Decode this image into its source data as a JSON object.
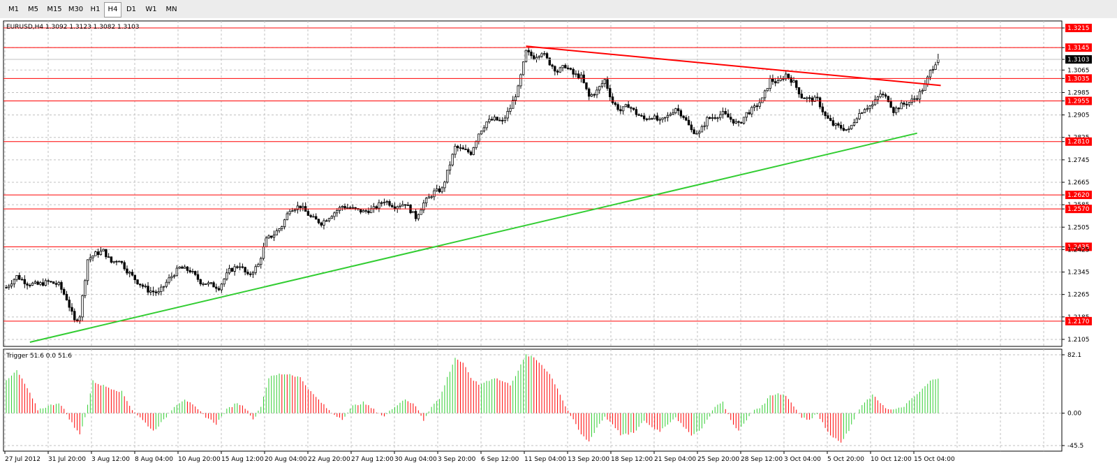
{
  "toolbar": {
    "timeframes": [
      "M1",
      "M5",
      "M15",
      "M30",
      "H1",
      "H4",
      "D1",
      "W1",
      "MN"
    ],
    "active": "H4"
  },
  "chart_data": [
    {
      "type": "candlestick",
      "symbol": "EURUSD",
      "timeframe": "H4",
      "header": "EURUSD,H4  1.3092 1.3123 1.3082 1.3103",
      "ohlc_last": {
        "open": 1.3092,
        "high": 1.3123,
        "low": 1.3082,
        "close": 1.3103
      },
      "current_price": "1.3103",
      "ylim": [
        1.208,
        1.324
      ],
      "y_ticks": [
        "1.3215",
        "1.3145",
        "1.3103",
        "1.3065",
        "1.3035",
        "1.2985",
        "1.2955",
        "1.2905",
        "1.2825",
        "1.2810",
        "1.2745",
        "1.2665",
        "1.2620",
        "1.2585",
        "1.2570",
        "1.2505",
        "1.2435",
        "1.2425",
        "1.2345",
        "1.2265",
        "1.2185",
        "1.2170",
        "1.2105"
      ],
      "levels": [
        1.3215,
        1.3145,
        1.3035,
        1.2955,
        1.281,
        1.262,
        1.257,
        1.2435,
        1.217
      ],
      "x_tick_labels": [
        "27 Jul 2012",
        "31 Jul 20:00",
        "3 Aug 12:00",
        "8 Aug 04:00",
        "10 Aug 20:00",
        "15 Aug 12:00",
        "20 Aug 04:00",
        "22 Aug 20:00",
        "27 Aug 12:00",
        "30 Aug 04:00",
        "3 Sep 20:00",
        "6 Sep 12:00",
        "11 Sep 04:00",
        "13 Sep 20:00",
        "18 Sep 12:00",
        "21 Sep 04:00",
        "25 Sep 20:00",
        "28 Sep 12:00",
        "3 Oct 04:00",
        "5 Oct 20:00",
        "10 Oct 12:00",
        "15 Oct 04:00"
      ],
      "close_path": [
        [
          0,
          1.229
        ],
        [
          4,
          1.233
        ],
        [
          8,
          1.2305
        ],
        [
          12,
          1.23
        ],
        [
          16,
          1.231
        ],
        [
          20,
          1.23
        ],
        [
          23,
          1.225
        ],
        [
          26,
          1.217
        ],
        [
          28,
          1.219
        ],
        [
          31,
          1.239
        ],
        [
          34,
          1.241
        ],
        [
          37,
          1.242
        ],
        [
          40,
          1.238
        ],
        [
          43,
          1.239
        ],
        [
          46,
          1.235
        ],
        [
          50,
          1.231
        ],
        [
          54,
          1.228
        ],
        [
          58,
          1.227
        ],
        [
          62,
          1.232
        ],
        [
          66,
          1.236
        ],
        [
          70,
          1.235
        ],
        [
          74,
          1.231
        ],
        [
          78,
          1.23
        ],
        [
          81,
          1.229
        ],
        [
          85,
          1.235
        ],
        [
          89,
          1.237
        ],
        [
          92,
          1.233
        ],
        [
          96,
          1.237
        ],
        [
          99,
          1.246
        ],
        [
          102,
          1.248
        ],
        [
          105,
          1.251
        ],
        [
          108,
          1.257
        ],
        [
          112,
          1.258
        ],
        [
          116,
          1.254
        ],
        [
          120,
          1.252
        ],
        [
          124,
          1.255
        ],
        [
          128,
          1.258
        ],
        [
          132,
          1.257
        ],
        [
          136,
          1.256
        ],
        [
          140,
          1.257
        ],
        [
          144,
          1.26
        ],
        [
          148,
          1.258
        ],
        [
          152,
          1.259
        ],
        [
          156,
          1.254
        ],
        [
          159,
          1.259
        ],
        [
          163,
          1.263
        ],
        [
          166,
          1.264
        ],
        [
          168,
          1.27
        ],
        [
          171,
          1.279
        ],
        [
          174,
          1.278
        ],
        [
          177,
          1.277
        ],
        [
          180,
          1.284
        ],
        [
          183,
          1.288
        ],
        [
          186,
          1.289
        ],
        [
          189,
          1.288
        ],
        [
          192,
          1.293
        ],
        [
          195,
          1.3
        ],
        [
          198,
          1.313
        ],
        [
          201,
          1.311
        ],
        [
          204,
          1.313
        ],
        [
          207,
          1.309
        ],
        [
          210,
          1.306
        ],
        [
          213,
          1.308
        ],
        [
          216,
          1.305
        ],
        [
          219,
          1.304
        ],
        [
          222,
          1.297
        ],
        [
          225,
          1.299
        ],
        [
          228,
          1.303
        ],
        [
          231,
          1.295
        ],
        [
          234,
          1.292
        ],
        [
          237,
          1.294
        ],
        [
          240,
          1.291
        ],
        [
          243,
          1.289
        ],
        [
          246,
          1.29
        ],
        [
          249,
          1.288
        ],
        [
          252,
          1.29
        ],
        [
          255,
          1.293
        ],
        [
          258,
          1.29
        ],
        [
          261,
          1.285
        ],
        [
          264,
          1.284
        ],
        [
          267,
          1.289
        ],
        [
          270,
          1.29
        ],
        [
          273,
          1.291
        ],
        [
          276,
          1.289
        ],
        [
          279,
          1.287
        ],
        [
          282,
          1.291
        ],
        [
          285,
          1.293
        ],
        [
          288,
          1.296
        ],
        [
          291,
          1.303
        ],
        [
          294,
          1.302
        ],
        [
          297,
          1.305
        ],
        [
          300,
          1.302
        ],
        [
          303,
          1.297
        ],
        [
          306,
          1.296
        ],
        [
          309,
          1.296
        ],
        [
          312,
          1.29
        ],
        [
          315,
          1.287
        ],
        [
          318,
          1.286
        ],
        [
          321,
          1.285
        ],
        [
          324,
          1.29
        ],
        [
          327,
          1.293
        ],
        [
          330,
          1.294
        ],
        [
          333,
          1.298
        ],
        [
          336,
          1.296
        ],
        [
          338,
          1.292
        ],
        [
          341,
          1.294
        ],
        [
          344,
          1.295
        ],
        [
          347,
          1.297
        ],
        [
          350,
          1.301
        ],
        [
          352,
          1.306
        ],
        [
          354,
          1.3092
        ],
        [
          355,
          1.3103
        ]
      ]
    },
    {
      "type": "histogram",
      "name": "Trigger",
      "header": "Trigger 51.6 0.0 51.6",
      "ylim": [
        -45.5,
        82.1
      ],
      "y_ticks": [
        "82.1",
        "0.00",
        "-45.5"
      ],
      "colors": {
        "rising": "#32cd32",
        "falling": "#ff0000"
      },
      "path": [
        [
          0,
          45
        ],
        [
          4,
          60
        ],
        [
          8,
          35
        ],
        [
          12,
          5
        ],
        [
          16,
          10
        ],
        [
          20,
          15
        ],
        [
          22,
          5
        ],
        [
          26,
          -20
        ],
        [
          28,
          -30
        ],
        [
          30,
          -5
        ],
        [
          33,
          45
        ],
        [
          36,
          40
        ],
        [
          40,
          35
        ],
        [
          44,
          30
        ],
        [
          48,
          5
        ],
        [
          52,
          -10
        ],
        [
          56,
          -25
        ],
        [
          60,
          -10
        ],
        [
          64,
          10
        ],
        [
          68,
          20
        ],
        [
          72,
          8
        ],
        [
          76,
          -5
        ],
        [
          80,
          -15
        ],
        [
          84,
          5
        ],
        [
          88,
          15
        ],
        [
          92,
          5
        ],
        [
          94,
          -10
        ],
        [
          97,
          10
        ],
        [
          100,
          50
        ],
        [
          104,
          55
        ],
        [
          108,
          55
        ],
        [
          112,
          50
        ],
        [
          116,
          30
        ],
        [
          120,
          15
        ],
        [
          124,
          0
        ],
        [
          128,
          -8
        ],
        [
          132,
          10
        ],
        [
          136,
          15
        ],
        [
          140,
          5
        ],
        [
          144,
          -5
        ],
        [
          148,
          10
        ],
        [
          152,
          20
        ],
        [
          156,
          10
        ],
        [
          159,
          -10
        ],
        [
          162,
          10
        ],
        [
          165,
          20
        ],
        [
          168,
          50
        ],
        [
          171,
          78
        ],
        [
          174,
          70
        ],
        [
          177,
          50
        ],
        [
          180,
          40
        ],
        [
          183,
          45
        ],
        [
          186,
          50
        ],
        [
          189,
          45
        ],
        [
          192,
          40
        ],
        [
          195,
          60
        ],
        [
          198,
          82
        ],
        [
          201,
          78
        ],
        [
          204,
          68
        ],
        [
          207,
          55
        ],
        [
          210,
          35
        ],
        [
          213,
          10
        ],
        [
          216,
          -10
        ],
        [
          219,
          -30
        ],
        [
          222,
          -40
        ],
        [
          225,
          -20
        ],
        [
          228,
          -5
        ],
        [
          231,
          -15
        ],
        [
          234,
          -30
        ],
        [
          237,
          -30
        ],
        [
          240,
          -25
        ],
        [
          243,
          -10
        ],
        [
          246,
          -20
        ],
        [
          249,
          -25
        ],
        [
          252,
          -15
        ],
        [
          255,
          -5
        ],
        [
          258,
          -20
        ],
        [
          261,
          -30
        ],
        [
          264,
          -25
        ],
        [
          267,
          -10
        ],
        [
          270,
          10
        ],
        [
          273,
          15
        ],
        [
          276,
          -10
        ],
        [
          279,
          -25
        ],
        [
          282,
          -10
        ],
        [
          285,
          5
        ],
        [
          288,
          10
        ],
        [
          291,
          25
        ],
        [
          294,
          28
        ],
        [
          297,
          25
        ],
        [
          300,
          10
        ],
        [
          303,
          -5
        ],
        [
          306,
          -10
        ],
        [
          309,
          0
        ],
        [
          312,
          -20
        ],
        [
          315,
          -35
        ],
        [
          318,
          -40
        ],
        [
          321,
          -25
        ],
        [
          324,
          0
        ],
        [
          327,
          15
        ],
        [
          330,
          25
        ],
        [
          333,
          15
        ],
        [
          336,
          5
        ],
        [
          339,
          5
        ],
        [
          342,
          10
        ],
        [
          345,
          20
        ],
        [
          348,
          30
        ],
        [
          352,
          45
        ],
        [
          355,
          50
        ]
      ]
    }
  ]
}
